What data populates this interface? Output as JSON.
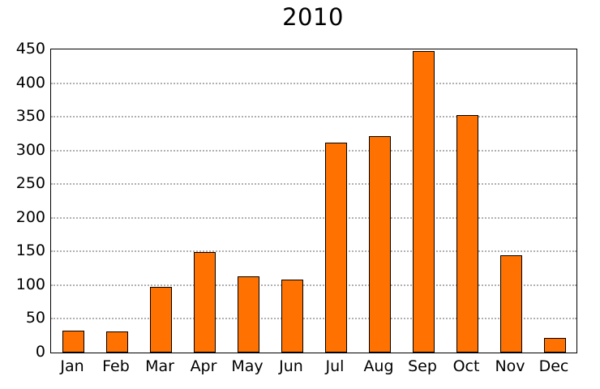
{
  "chart_data": {
    "type": "bar",
    "title": "2010",
    "categories": [
      "Jan",
      "Feb",
      "Mar",
      "Apr",
      "May",
      "Jun",
      "Jul",
      "Aug",
      "Sep",
      "Oct",
      "Nov",
      "Dec"
    ],
    "values": [
      33,
      31,
      98,
      149,
      113,
      108,
      312,
      321,
      448,
      353,
      144,
      22
    ],
    "xlabel": "",
    "ylabel": "",
    "ylim": [
      0,
      450
    ],
    "ytick_step": 50,
    "grid": "horizontal-dotted",
    "legend": "none",
    "colors": {
      "bar_fill": "#ff7100",
      "bar_edge": "#000000",
      "grid_line": "#b0b0b0",
      "axis_frame": "#000000",
      "background": "#ffffff",
      "text": "#000000"
    }
  }
}
